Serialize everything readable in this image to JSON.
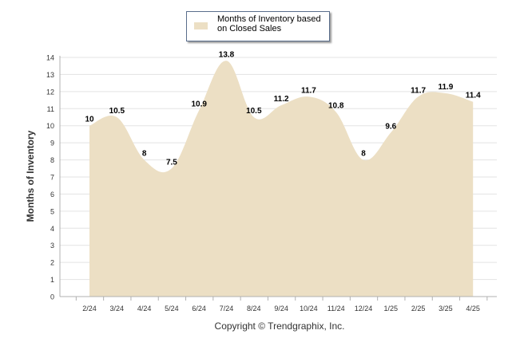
{
  "legend": {
    "label": "Months of Inventory based on Closed Sales"
  },
  "credit": "Copyright © Trendgraphix, Inc.",
  "colors": {
    "fill": "#ecdfc4",
    "grid": "#e3e3e3",
    "axis": "#b0b0b0",
    "text": "#000000"
  },
  "chart_data": {
    "type": "area",
    "title": "",
    "xlabel": "",
    "ylabel": "Months of Inventory",
    "ylim": [
      0,
      14
    ],
    "yticks": [
      0,
      1,
      2,
      3,
      4,
      5,
      6,
      7,
      8,
      9,
      10,
      11,
      12,
      13,
      14
    ],
    "grid": true,
    "legend_position": "top-center",
    "categories": [
      "2/24",
      "3/24",
      "4/24",
      "5/24",
      "6/24",
      "7/24",
      "8/24",
      "9/24",
      "10/24",
      "11/24",
      "12/24",
      "1/25",
      "2/25",
      "3/25",
      "4/25"
    ],
    "series": [
      {
        "name": "Months of Inventory based on Closed Sales",
        "values": [
          10,
          10.5,
          8,
          7.5,
          10.9,
          13.8,
          10.5,
          11.2,
          11.7,
          10.8,
          8,
          9.6,
          11.7,
          11.9,
          11.4
        ]
      }
    ]
  }
}
